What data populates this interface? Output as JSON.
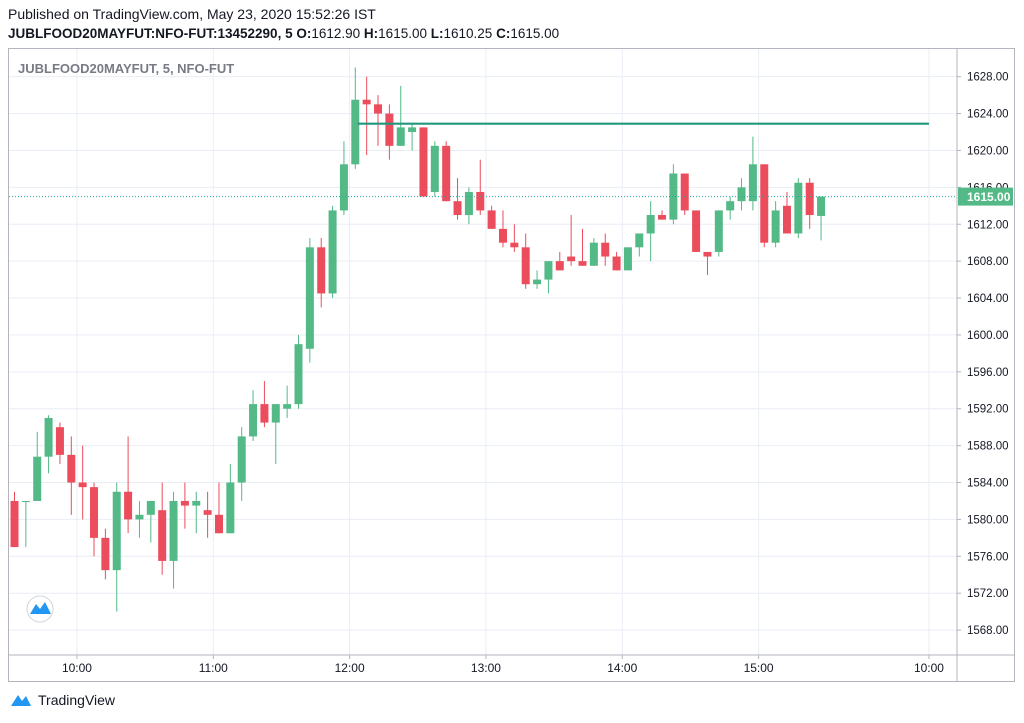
{
  "header": {
    "published": "Published on TradingView.com, May 23, 2020 15:52:26 IST",
    "symbol_line": "JUBLFOOD20MAYFUT:NFO-FUT:13452290, 5",
    "o_label": "O:",
    "o_value": "1612.90",
    "h_label": "H:",
    "h_value": "1615.00",
    "l_label": "L:",
    "l_value": "1610.25",
    "c_label": "C:",
    "c_value": "1615.00"
  },
  "footer": {
    "brand": "TradingView"
  },
  "colors": {
    "up": "#53b987",
    "down": "#eb4d5c",
    "level_line": "#22977d",
    "price_dotted": "#26a69a",
    "grid": "#e9eef5"
  },
  "chart_data": {
    "type": "candlestick",
    "title": "JUBLFOOD20MAYFUT, 5, NFO-FUT",
    "ylim": [
      1565.3,
      1631.0
    ],
    "y_ticks": [
      1568.0,
      1572.0,
      1576.0,
      1580.0,
      1584.0,
      1588.0,
      1592.0,
      1596.0,
      1600.0,
      1604.0,
      1608.0,
      1612.0,
      1616.0,
      1620.0,
      1624.0,
      1628.0
    ],
    "y_tick_labels": [
      "1568.00",
      "1572.00",
      "1576.00",
      "1580.00",
      "1584.00",
      "1588.00",
      "1592.00",
      "1596.00",
      "1600.00",
      "1604.00",
      "1608.00",
      "1612.00",
      "1616.00",
      "1620.00",
      "1624.00",
      "1628.00"
    ],
    "x_ticks": [
      {
        "label": "10:00",
        "bar": 5.5
      },
      {
        "label": "11:00",
        "bar": 17.5
      },
      {
        "label": "12:00",
        "bar": 29.5
      },
      {
        "label": "13:00",
        "bar": 41.5
      },
      {
        "label": "14:00",
        "bar": 53.5
      },
      {
        "label": "15:00",
        "bar": 65.5
      },
      {
        "label": "10:00",
        "bar": 80.5
      }
    ],
    "last_price": 1615.0,
    "last_price_label": "1615.00",
    "horizontal_level": {
      "price": 1622.9,
      "from_bar": 30.2,
      "to_bar": 80.5
    },
    "candles": [
      {
        "o": 1582.0,
        "h": 1583.0,
        "l": 1577.0,
        "c": 1577.0
      },
      {
        "o": 1582.0,
        "h": 1582.0,
        "l": 1577.0,
        "c": 1582.0
      },
      {
        "o": 1582.0,
        "h": 1589.5,
        "l": 1582.0,
        "c": 1586.8
      },
      {
        "o": 1586.8,
        "h": 1591.3,
        "l": 1585.0,
        "c": 1591.0
      },
      {
        "o": 1590.0,
        "h": 1590.5,
        "l": 1586.0,
        "c": 1587.0
      },
      {
        "o": 1587.0,
        "h": 1589.0,
        "l": 1580.5,
        "c": 1584.0
      },
      {
        "o": 1584.0,
        "h": 1588.0,
        "l": 1580.0,
        "c": 1583.5
      },
      {
        "o": 1583.5,
        "h": 1584.0,
        "l": 1576.0,
        "c": 1578.0
      },
      {
        "o": 1578.0,
        "h": 1579.0,
        "l": 1573.5,
        "c": 1574.5
      },
      {
        "o": 1574.5,
        "h": 1584.0,
        "l": 1570.0,
        "c": 1583.0
      },
      {
        "o": 1583.0,
        "h": 1589.0,
        "l": 1578.5,
        "c": 1580.0
      },
      {
        "o": 1580.0,
        "h": 1582.0,
        "l": 1578.0,
        "c": 1580.5
      },
      {
        "o": 1580.5,
        "h": 1582.0,
        "l": 1577.5,
        "c": 1582.0
      },
      {
        "o": 1581.0,
        "h": 1584.0,
        "l": 1574.0,
        "c": 1575.5
      },
      {
        "o": 1575.5,
        "h": 1583.0,
        "l": 1572.5,
        "c": 1582.0
      },
      {
        "o": 1582.0,
        "h": 1584.0,
        "l": 1579.0,
        "c": 1581.5
      },
      {
        "o": 1581.5,
        "h": 1583.0,
        "l": 1578.5,
        "c": 1582.0
      },
      {
        "o": 1581.0,
        "h": 1583.0,
        "l": 1578.0,
        "c": 1580.5
      },
      {
        "o": 1580.5,
        "h": 1584.0,
        "l": 1578.5,
        "c": 1578.5
      },
      {
        "o": 1578.5,
        "h": 1586.0,
        "l": 1578.5,
        "c": 1584.0
      },
      {
        "o": 1584.0,
        "h": 1590.0,
        "l": 1582.0,
        "c": 1589.0
      },
      {
        "o": 1589.0,
        "h": 1594.0,
        "l": 1588.5,
        "c": 1592.5
      },
      {
        "o": 1592.5,
        "h": 1595.0,
        "l": 1590.0,
        "c": 1590.5
      },
      {
        "o": 1590.5,
        "h": 1592.5,
        "l": 1586.0,
        "c": 1592.5
      },
      {
        "o": 1592.0,
        "h": 1594.5,
        "l": 1591.0,
        "c": 1592.5
      },
      {
        "o": 1592.5,
        "h": 1600.0,
        "l": 1592.0,
        "c": 1599.0
      },
      {
        "o": 1598.5,
        "h": 1610.5,
        "l": 1597.0,
        "c": 1609.5
      },
      {
        "o": 1609.5,
        "h": 1610.5,
        "l": 1603.0,
        "c": 1604.5
      },
      {
        "o": 1604.5,
        "h": 1614.0,
        "l": 1604.0,
        "c": 1613.5
      },
      {
        "o": 1613.5,
        "h": 1621.0,
        "l": 1613.0,
        "c": 1618.5
      },
      {
        "o": 1618.5,
        "h": 1629.0,
        "l": 1618.0,
        "c": 1625.5
      },
      {
        "o": 1625.5,
        "h": 1628.0,
        "l": 1619.5,
        "c": 1625.0
      },
      {
        "o": 1625.0,
        "h": 1626.0,
        "l": 1620.5,
        "c": 1624.0
      },
      {
        "o": 1624.0,
        "h": 1625.0,
        "l": 1619.0,
        "c": 1620.5
      },
      {
        "o": 1620.5,
        "h": 1627.0,
        "l": 1620.5,
        "c": 1622.5
      },
      {
        "o": 1622.0,
        "h": 1623.0,
        "l": 1620.0,
        "c": 1622.5
      },
      {
        "o": 1622.5,
        "h": 1622.5,
        "l": 1615.0,
        "c": 1615.0
      },
      {
        "o": 1615.5,
        "h": 1621.0,
        "l": 1615.0,
        "c": 1620.5
      },
      {
        "o": 1620.5,
        "h": 1621.0,
        "l": 1614.5,
        "c": 1614.5
      },
      {
        "o": 1614.5,
        "h": 1617.0,
        "l": 1612.5,
        "c": 1613.0
      },
      {
        "o": 1613.0,
        "h": 1616.0,
        "l": 1612.0,
        "c": 1615.5
      },
      {
        "o": 1615.5,
        "h": 1619.0,
        "l": 1613.0,
        "c": 1613.5
      },
      {
        "o": 1613.5,
        "h": 1614.0,
        "l": 1611.5,
        "c": 1611.5
      },
      {
        "o": 1611.5,
        "h": 1613.5,
        "l": 1609.5,
        "c": 1610.0
      },
      {
        "o": 1610.0,
        "h": 1612.0,
        "l": 1609.0,
        "c": 1609.5
      },
      {
        "o": 1609.5,
        "h": 1611.0,
        "l": 1605.0,
        "c": 1605.5
      },
      {
        "o": 1605.5,
        "h": 1607.0,
        "l": 1605.0,
        "c": 1606.0
      },
      {
        "o": 1606.0,
        "h": 1608.0,
        "l": 1604.5,
        "c": 1608.0
      },
      {
        "o": 1608.0,
        "h": 1609.0,
        "l": 1607.0,
        "c": 1607.0
      },
      {
        "o": 1608.5,
        "h": 1613.0,
        "l": 1607.5,
        "c": 1608.0
      },
      {
        "o": 1608.0,
        "h": 1611.5,
        "l": 1607.5,
        "c": 1607.5
      },
      {
        "o": 1607.5,
        "h": 1610.5,
        "l": 1607.5,
        "c": 1610.0
      },
      {
        "o": 1610.0,
        "h": 1611.0,
        "l": 1607.5,
        "c": 1608.5
      },
      {
        "o": 1608.5,
        "h": 1609.0,
        "l": 1607.0,
        "c": 1607.0
      },
      {
        "o": 1607.0,
        "h": 1609.5,
        "l": 1607.0,
        "c": 1609.5
      },
      {
        "o": 1609.5,
        "h": 1611.0,
        "l": 1608.5,
        "c": 1611.0
      },
      {
        "o": 1611.0,
        "h": 1614.5,
        "l": 1608.0,
        "c": 1613.0
      },
      {
        "o": 1613.0,
        "h": 1613.5,
        "l": 1612.5,
        "c": 1612.5
      },
      {
        "o": 1612.5,
        "h": 1618.5,
        "l": 1612.0,
        "c": 1617.5
      },
      {
        "o": 1617.5,
        "h": 1617.5,
        "l": 1613.0,
        "c": 1613.5
      },
      {
        "o": 1613.5,
        "h": 1613.5,
        "l": 1609.0,
        "c": 1609.0
      },
      {
        "o": 1609.0,
        "h": 1609.0,
        "l": 1606.5,
        "c": 1608.5
      },
      {
        "o": 1609.0,
        "h": 1613.5,
        "l": 1608.5,
        "c": 1613.5
      },
      {
        "o": 1613.5,
        "h": 1615.0,
        "l": 1612.5,
        "c": 1614.5
      },
      {
        "o": 1614.5,
        "h": 1617.0,
        "l": 1613.5,
        "c": 1616.0
      },
      {
        "o": 1614.5,
        "h": 1621.5,
        "l": 1613.5,
        "c": 1618.5
      },
      {
        "o": 1618.5,
        "h": 1618.5,
        "l": 1609.5,
        "c": 1610.0
      },
      {
        "o": 1610.0,
        "h": 1614.5,
        "l": 1609.5,
        "c": 1613.5
      },
      {
        "o": 1614.0,
        "h": 1615.5,
        "l": 1611.0,
        "c": 1611.0
      },
      {
        "o": 1611.0,
        "h": 1617.0,
        "l": 1610.5,
        "c": 1616.5
      },
      {
        "o": 1616.5,
        "h": 1617.0,
        "l": 1611.5,
        "c": 1613.0
      },
      {
        "o": 1612.9,
        "h": 1615.0,
        "l": 1610.25,
        "c": 1615.0
      }
    ]
  }
}
